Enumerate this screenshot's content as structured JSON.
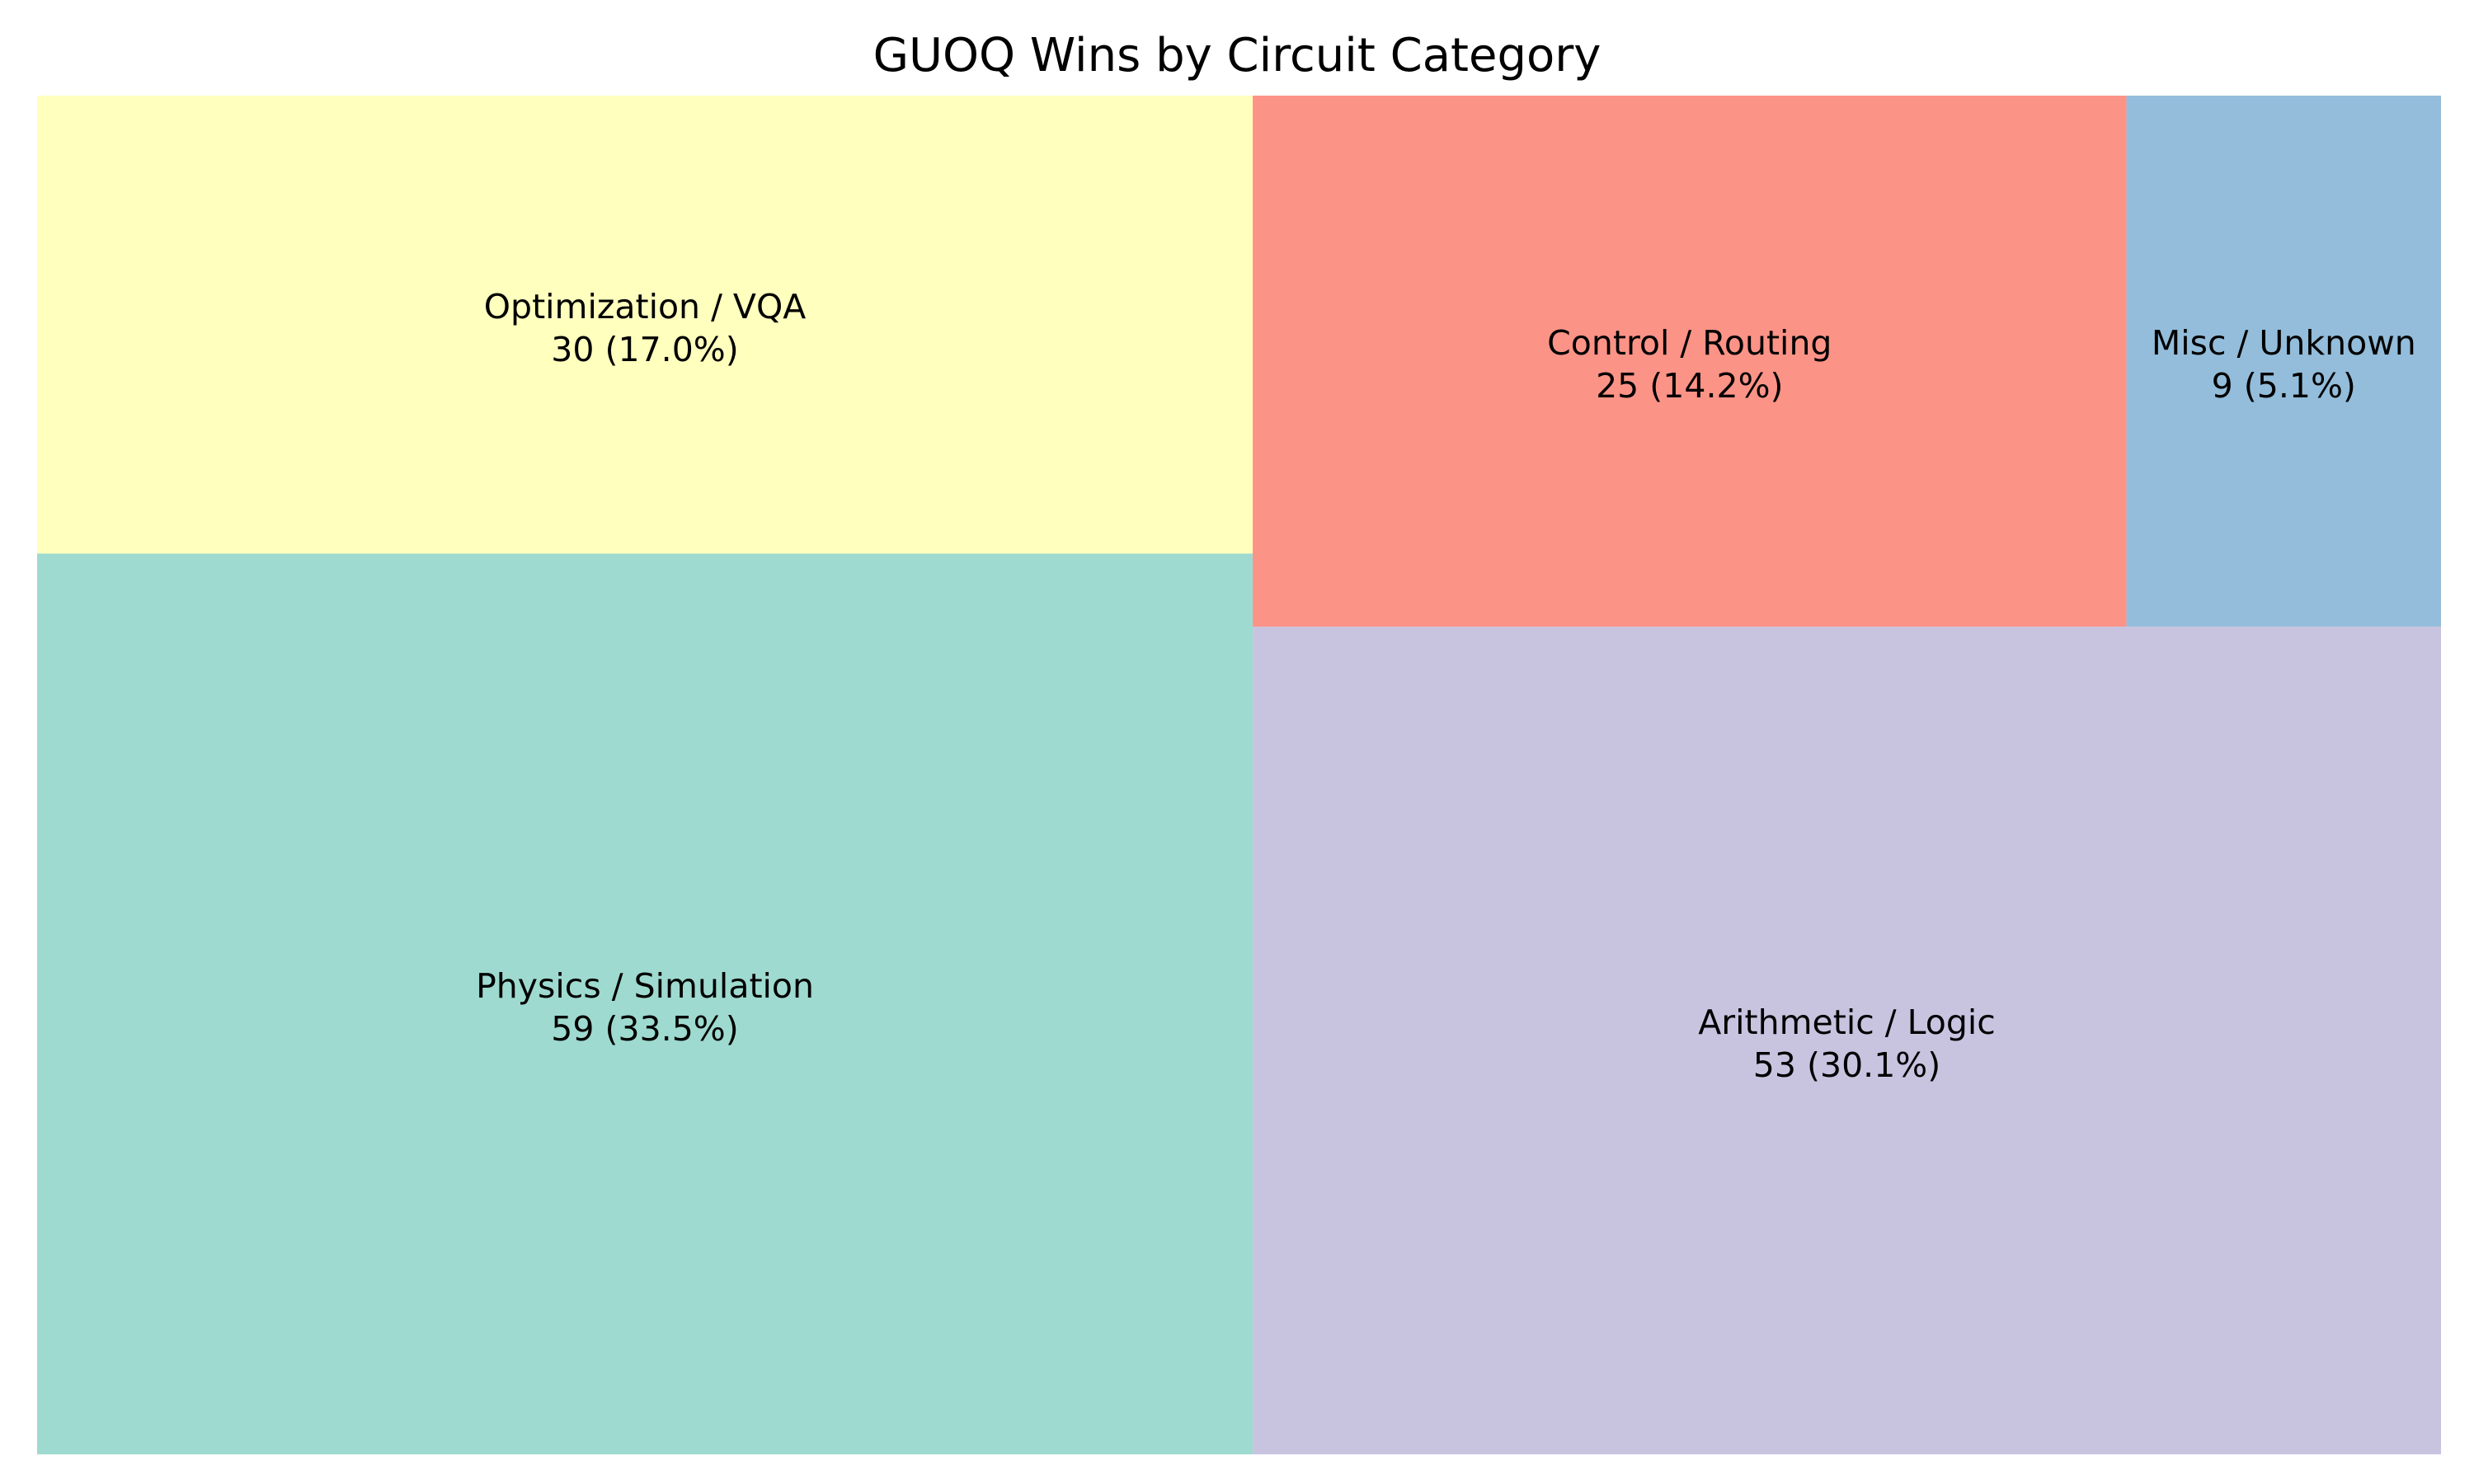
{
  "chart_data": {
    "type": "treemap",
    "title": "GUOQ Wins by Circuit Category",
    "categories": [
      "Physics / Simulation",
      "Optimization / VQA",
      "Arithmetic / Logic",
      "Control / Routing",
      "Misc / Unknown"
    ],
    "values": [
      59,
      30,
      53,
      25,
      9
    ],
    "labels": [
      "59 (33.5%)",
      "30 (17.0%)",
      "53 (30.1%)",
      "25 (14.2%)",
      "9 (5.1%)"
    ],
    "colors": [
      "#8dd3c7",
      "#ffffb3",
      "#bebada",
      "#fb8072",
      "#80b1d3"
    ],
    "total": 176
  }
}
